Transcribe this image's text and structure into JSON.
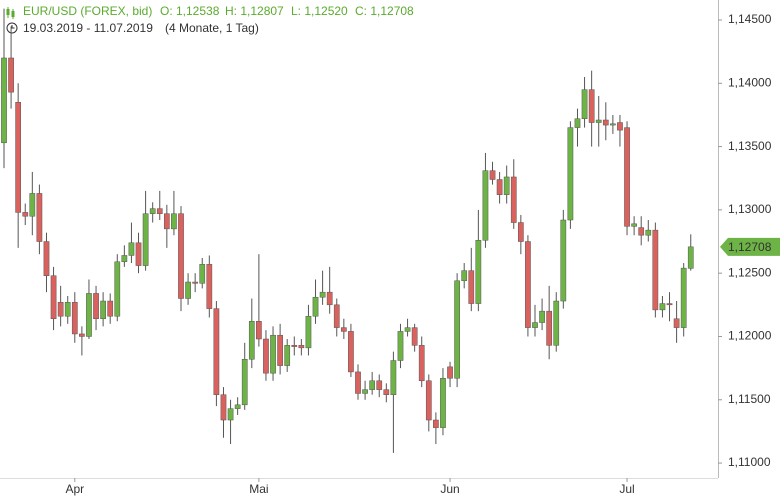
{
  "chart_data": {
    "type": "candlestick",
    "title": "EUR/USD (FOREX, bid)",
    "ohlc_labels": [
      "O: 1,12538",
      "H: 1,12807",
      "L: 1,12520",
      "C: 1,12708"
    ],
    "range": "19.03.2019 - 11.07.2019",
    "period": "(4 Monate, 1 Tag)",
    "categories": [
      null,
      null,
      null,
      null,
      null,
      null,
      null,
      null,
      null,
      null,
      "Apr",
      null,
      null,
      null,
      null,
      null,
      null,
      null,
      null,
      null,
      null,
      null,
      null,
      null,
      null,
      null,
      null,
      null,
      null,
      null,
      null,
      null,
      null,
      null,
      null,
      null,
      "Mai",
      null,
      null,
      null,
      null,
      null,
      null,
      null,
      null,
      null,
      null,
      null,
      null,
      null,
      null,
      null,
      null,
      null,
      null,
      null,
      null,
      null,
      null,
      null,
      null,
      null,
      null,
      "Jun",
      null,
      null,
      null,
      null,
      null,
      null,
      null,
      null,
      null,
      null,
      null,
      null,
      null,
      null,
      null,
      null,
      null,
      null,
      null,
      null,
      null,
      null,
      null,
      null,
      "Jul",
      null,
      null,
      null,
      null,
      null,
      null,
      null,
      null,
      null
    ],
    "open": [
      1.1353,
      1.142,
      1.1385,
      1.1298,
      1.1295,
      1.1313,
      1.1275,
      1.1248,
      1.1227,
      1.1216,
      1.1227,
      1.1202,
      1.12,
      1.1234,
      1.1214,
      1.1228,
      1.1216,
      1.1259,
      1.1264,
      1.1274,
      1.1256,
      1.1297,
      1.1301,
      1.1297,
      1.1285,
      1.1297,
      1.123,
      1.1243,
      1.1242,
      1.1257,
      1.1222,
      1.1154,
      1.1134,
      1.1143,
      1.1146,
      1.1182,
      1.1212,
      1.1198,
      1.1171,
      1.1201,
      1.1177,
      1.1193,
      1.1193,
      1.1191,
      1.1216,
      1.1231,
      1.1235,
      1.1225,
      1.1207,
      1.1204,
      1.1172,
      1.1155,
      1.1158,
      1.1165,
      1.1158,
      1.1154,
      1.1181,
      1.1204,
      1.1207,
      1.1193,
      1.1165,
      1.1134,
      1.1128,
      1.1176,
      1.1167,
      1.1244,
      1.1252,
      1.1226,
      1.1276,
      1.1331,
      1.1324,
      1.1312,
      1.1326,
      1.129,
      1.1275,
      1.1207,
      1.1211,
      1.122,
      1.1193,
      1.1228,
      1.1292,
      1.1365,
      1.1372,
      1.1395,
      1.1369,
      1.1371,
      1.1367,
      1.1369,
      1.1365,
      1.1287,
      1.1286,
      1.128,
      1.1284,
      1.1221,
      1.1226,
      1.1214,
      1.1207,
      1.12538
    ],
    "high": [
      1.1459,
      1.1445,
      1.14,
      1.1305,
      1.133,
      1.132,
      1.1282,
      1.1255,
      1.124,
      1.1232,
      1.1235,
      1.1208,
      1.1245,
      1.124,
      1.1235,
      1.1234,
      1.1265,
      1.1272,
      1.129,
      1.1282,
      1.1315,
      1.1306,
      1.1315,
      1.1304,
      1.1315,
      1.1303,
      1.125,
      1.125,
      1.1262,
      1.1264,
      1.1228,
      1.116,
      1.115,
      1.1152,
      1.1195,
      1.123,
      1.1265,
      1.1205,
      1.1208,
      1.121,
      1.1198,
      1.12,
      1.1198,
      1.1225,
      1.1245,
      1.1252,
      1.1255,
      1.123,
      1.1214,
      1.121,
      1.1178,
      1.1165,
      1.1172,
      1.117,
      1.1163,
      1.1188,
      1.121,
      1.1214,
      1.121,
      1.12,
      1.117,
      1.114,
      1.1175,
      1.118,
      1.125,
      1.1258,
      1.127,
      1.13,
      1.1345,
      1.1338,
      1.133,
      1.1335,
      1.134,
      1.1296,
      1.128,
      1.1225,
      1.123,
      1.124,
      1.1235,
      1.13,
      1.137,
      1.138,
      1.1405,
      1.141,
      1.139,
      1.1385,
      1.1375,
      1.1375,
      1.137,
      1.1295,
      1.1295,
      1.1292,
      1.129,
      1.1232,
      1.1235,
      1.1228,
      1.1258,
      1.12807
    ],
    "low": [
      1.1333,
      1.138,
      1.127,
      1.1288,
      1.128,
      1.1265,
      1.1235,
      1.1205,
      1.1208,
      1.121,
      1.1195,
      1.1185,
      1.1198,
      1.1205,
      1.1208,
      1.121,
      1.1212,
      1.1255,
      1.1258,
      1.125,
      1.1252,
      1.129,
      1.1292,
      1.127,
      1.128,
      1.122,
      1.1225,
      1.1235,
      1.1238,
      1.1215,
      1.1145,
      1.112,
      1.1115,
      1.1138,
      1.1142,
      1.1175,
      1.1192,
      1.1165,
      1.1165,
      1.117,
      1.1172,
      1.1185,
      1.1185,
      1.1185,
      1.121,
      1.1225,
      1.1218,
      1.12,
      1.1198,
      1.1168,
      1.115,
      1.115,
      1.1154,
      1.1152,
      1.1148,
      1.1108,
      1.1175,
      1.12,
      1.1188,
      1.116,
      1.1125,
      1.1115,
      1.1122,
      1.116,
      1.116,
      1.1238,
      1.122,
      1.122,
      1.127,
      1.132,
      1.1305,
      1.1305,
      1.1285,
      1.1265,
      1.12,
      1.12,
      1.1205,
      1.1182,
      1.1188,
      1.1222,
      1.1285,
      1.135,
      1.1365,
      1.135,
      1.135,
      1.1355,
      1.136,
      1.135,
      1.128,
      1.128,
      1.1272,
      1.1275,
      1.1215,
      1.1215,
      1.1212,
      1.1195,
      1.12,
      1.1252
    ],
    "close": [
      1.142,
      1.1393,
      1.1298,
      1.1295,
      1.1313,
      1.1275,
      1.1248,
      1.1214,
      1.1216,
      1.1227,
      1.1202,
      1.12,
      1.1234,
      1.1214,
      1.1228,
      1.1216,
      1.1259,
      1.1264,
      1.1274,
      1.1256,
      1.1297,
      1.1301,
      1.1297,
      1.1285,
      1.1297,
      1.123,
      1.1243,
      1.1242,
      1.1257,
      1.1222,
      1.1154,
      1.1134,
      1.1143,
      1.1146,
      1.1182,
      1.1212,
      1.1198,
      1.1171,
      1.1201,
      1.1177,
      1.1193,
      1.1192,
      1.1191,
      1.1216,
      1.1231,
      1.1235,
      1.1225,
      1.1207,
      1.1204,
      1.1172,
      1.1155,
      1.1158,
      1.1165,
      1.1158,
      1.1154,
      1.1181,
      1.1204,
      1.1207,
      1.1193,
      1.1165,
      1.1134,
      1.1128,
      1.1167,
      1.1167,
      1.1244,
      1.1252,
      1.1226,
      1.1276,
      1.1331,
      1.1324,
      1.1312,
      1.1326,
      1.129,
      1.1275,
      1.1207,
      1.1211,
      1.122,
      1.1193,
      1.1228,
      1.1292,
      1.1365,
      1.1372,
      1.1395,
      1.1369,
      1.1371,
      1.1367,
      1.1368,
      1.1363,
      1.1287,
      1.1289,
      1.128,
      1.1284,
      1.1221,
      1.1226,
      1.1225,
      1.1207,
      1.1254,
      1.12708
    ],
    "up_color": "#6db346",
    "down_color": "#d9625f",
    "last_price": {
      "value": 1.12708,
      "label": "1,12708"
    },
    "ylim": [
      1.10882,
      1.14658
    ],
    "yticks": [
      {
        "value": 1.145,
        "label": "1,14500"
      },
      {
        "value": 1.14,
        "label": "1,14000"
      },
      {
        "value": 1.135,
        "label": "1,13500"
      },
      {
        "value": 1.13,
        "label": "1,13000"
      },
      {
        "value": 1.125,
        "label": "1,12500"
      },
      {
        "value": 1.12,
        "label": "1,12000"
      },
      {
        "value": 1.115,
        "label": "1,11500"
      },
      {
        "value": 1.11,
        "label": "1,11000"
      }
    ]
  }
}
